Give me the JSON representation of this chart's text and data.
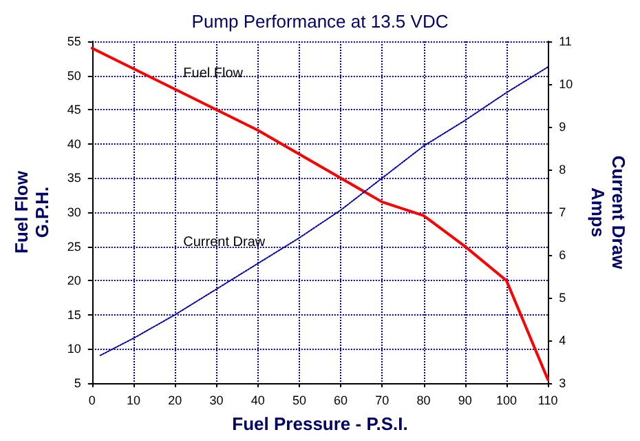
{
  "chart_data": {
    "type": "line",
    "title": "Pump Performance at 13.5 VDC",
    "xlabel": "Fuel Pressure - P.S.I.",
    "ylabel": "Fuel Flow\nG.P.H.",
    "y2label": "Current Draw\nAmps",
    "xlim": [
      0,
      110
    ],
    "xticks": [
      0,
      10,
      20,
      30,
      40,
      50,
      60,
      70,
      80,
      90,
      100,
      110
    ],
    "ylim": [
      5,
      55
    ],
    "yticks": [
      5,
      10,
      15,
      20,
      25,
      30,
      35,
      40,
      45,
      50,
      55
    ],
    "y2lim": [
      3,
      11
    ],
    "y2ticks": [
      3,
      4,
      5,
      6,
      7,
      8,
      9,
      10,
      11
    ],
    "grid": true,
    "legend": false,
    "marker": "none",
    "series": [
      {
        "name": "Fuel Flow",
        "color": "#ff0000",
        "line_style": "solid",
        "x": [
          0,
          10,
          20,
          30,
          40,
          50,
          60,
          70,
          80,
          90,
          100,
          110
        ],
        "values": [
          54,
          51,
          48,
          45,
          42,
          38.5,
          35,
          31.5,
          29.5,
          25,
          20,
          5.5
        ]
      },
      {
        "name": "Current Draw",
        "color": "#0000aa",
        "line_style": "dotted",
        "axis": "y2",
        "x": [
          2,
          10,
          20,
          30,
          40,
          50,
          60,
          70,
          80,
          90,
          100,
          110
        ],
        "values": [
          3.65,
          4.05,
          4.6,
          5.2,
          5.8,
          6.4,
          7.05,
          7.8,
          8.55,
          9.15,
          9.8,
          10.4
        ]
      }
    ]
  }
}
